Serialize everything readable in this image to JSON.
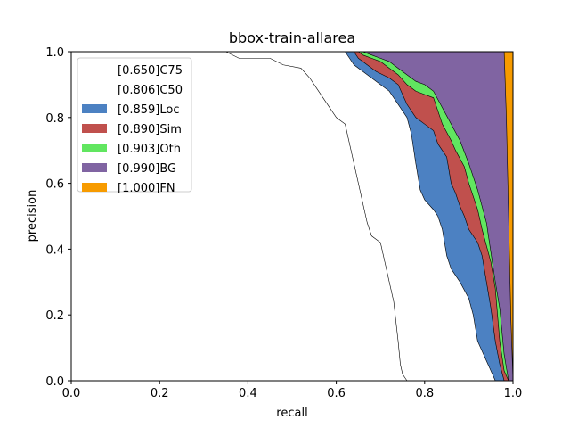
{
  "chart_data": {
    "type": "area",
    "title": "bbox-train-allarea",
    "xlabel": "recall",
    "ylabel": "precision",
    "xlim": [
      0.0,
      1.0
    ],
    "ylim": [
      0.0,
      1.0
    ],
    "xticks": [
      "0.0",
      "0.2",
      "0.4",
      "0.6",
      "0.8",
      "1.0"
    ],
    "yticks": [
      "0.0",
      "0.2",
      "0.4",
      "0.6",
      "0.8",
      "1.0"
    ],
    "grid": false,
    "legend_position": "top-left",
    "series": [
      {
        "name": "[0.650]C75",
        "color": "#ffffff",
        "points": [
          [
            0.0,
            1.0
          ],
          [
            0.35,
            1.0
          ],
          [
            0.38,
            0.98
          ],
          [
            0.45,
            0.98
          ],
          [
            0.48,
            0.96
          ],
          [
            0.52,
            0.95
          ],
          [
            0.54,
            0.92
          ],
          [
            0.56,
            0.88
          ],
          [
            0.58,
            0.84
          ],
          [
            0.6,
            0.8
          ],
          [
            0.62,
            0.78
          ],
          [
            0.63,
            0.72
          ],
          [
            0.65,
            0.6
          ],
          [
            0.67,
            0.48
          ],
          [
            0.68,
            0.44
          ],
          [
            0.7,
            0.42
          ],
          [
            0.71,
            0.36
          ],
          [
            0.72,
            0.3
          ],
          [
            0.73,
            0.24
          ],
          [
            0.74,
            0.12
          ],
          [
            0.745,
            0.05
          ],
          [
            0.75,
            0.02
          ],
          [
            0.76,
            0.0
          ]
        ]
      },
      {
        "name": "[0.806]C50",
        "color": "#ffffff",
        "points": [
          [
            0.0,
            1.0
          ],
          [
            0.62,
            1.0
          ],
          [
            0.63,
            0.98
          ],
          [
            0.64,
            0.96
          ],
          [
            0.66,
            0.94
          ],
          [
            0.68,
            0.92
          ],
          [
            0.7,
            0.9
          ],
          [
            0.72,
            0.88
          ],
          [
            0.74,
            0.84
          ],
          [
            0.76,
            0.8
          ],
          [
            0.77,
            0.75
          ],
          [
            0.78,
            0.66
          ],
          [
            0.79,
            0.58
          ],
          [
            0.8,
            0.55
          ],
          [
            0.82,
            0.52
          ],
          [
            0.83,
            0.5
          ],
          [
            0.84,
            0.46
          ],
          [
            0.85,
            0.38
          ],
          [
            0.86,
            0.34
          ],
          [
            0.88,
            0.3
          ],
          [
            0.9,
            0.25
          ],
          [
            0.91,
            0.2
          ],
          [
            0.92,
            0.12
          ],
          [
            0.94,
            0.06
          ],
          [
            0.95,
            0.03
          ],
          [
            0.96,
            0.0
          ]
        ]
      },
      {
        "name": "[0.859]Loc",
        "color": "#4c81c2",
        "points": [
          [
            0.0,
            1.0
          ],
          [
            0.64,
            1.0
          ],
          [
            0.65,
            0.98
          ],
          [
            0.67,
            0.96
          ],
          [
            0.69,
            0.94
          ],
          [
            0.72,
            0.92
          ],
          [
            0.74,
            0.9
          ],
          [
            0.76,
            0.84
          ],
          [
            0.78,
            0.8
          ],
          [
            0.8,
            0.78
          ],
          [
            0.82,
            0.76
          ],
          [
            0.83,
            0.72
          ],
          [
            0.85,
            0.68
          ],
          [
            0.86,
            0.6
          ],
          [
            0.87,
            0.57
          ],
          [
            0.88,
            0.53
          ],
          [
            0.89,
            0.5
          ],
          [
            0.9,
            0.46
          ],
          [
            0.92,
            0.42
          ],
          [
            0.93,
            0.38
          ],
          [
            0.94,
            0.3
          ],
          [
            0.95,
            0.22
          ],
          [
            0.96,
            0.12
          ],
          [
            0.97,
            0.05
          ],
          [
            0.98,
            0.0
          ]
        ]
      },
      {
        "name": "[0.890]Sim",
        "color": "#c0504d",
        "points": [
          [
            0.0,
            1.0
          ],
          [
            0.65,
            1.0
          ],
          [
            0.66,
            0.99
          ],
          [
            0.68,
            0.98
          ],
          [
            0.7,
            0.97
          ],
          [
            0.72,
            0.95
          ],
          [
            0.74,
            0.93
          ],
          [
            0.76,
            0.9
          ],
          [
            0.78,
            0.88
          ],
          [
            0.8,
            0.87
          ],
          [
            0.82,
            0.86
          ],
          [
            0.84,
            0.78
          ],
          [
            0.86,
            0.73
          ],
          [
            0.87,
            0.7
          ],
          [
            0.89,
            0.65
          ],
          [
            0.9,
            0.6
          ],
          [
            0.92,
            0.52
          ],
          [
            0.93,
            0.46
          ],
          [
            0.95,
            0.36
          ],
          [
            0.96,
            0.28
          ],
          [
            0.97,
            0.12
          ],
          [
            0.98,
            0.03
          ],
          [
            0.99,
            0.0
          ]
        ]
      },
      {
        "name": "[0.903]Oth",
        "color": "#61e660",
        "points": [
          [
            0.0,
            1.0
          ],
          [
            0.66,
            1.0
          ],
          [
            0.68,
            0.99
          ],
          [
            0.7,
            0.98
          ],
          [
            0.72,
            0.97
          ],
          [
            0.74,
            0.95
          ],
          [
            0.76,
            0.93
          ],
          [
            0.78,
            0.91
          ],
          [
            0.8,
            0.9
          ],
          [
            0.82,
            0.88
          ],
          [
            0.84,
            0.83
          ],
          [
            0.86,
            0.78
          ],
          [
            0.88,
            0.73
          ],
          [
            0.9,
            0.66
          ],
          [
            0.92,
            0.58
          ],
          [
            0.94,
            0.48
          ],
          [
            0.96,
            0.3
          ],
          [
            0.97,
            0.22
          ],
          [
            0.98,
            0.08
          ],
          [
            0.99,
            0.0
          ]
        ]
      },
      {
        "name": "[0.990]BG",
        "color": "#8064a2",
        "points": [
          [
            0.0,
            1.0
          ],
          [
            0.98,
            1.0
          ],
          [
            0.985,
            0.8
          ],
          [
            0.99,
            0.5
          ],
          [
            0.995,
            0.2
          ],
          [
            1.0,
            0.0
          ]
        ]
      },
      {
        "name": "[1.000]FN",
        "color": "#f79b00",
        "points": [
          [
            0.0,
            1.0
          ],
          [
            1.0,
            1.0
          ],
          [
            1.0,
            0.0
          ]
        ]
      }
    ]
  }
}
